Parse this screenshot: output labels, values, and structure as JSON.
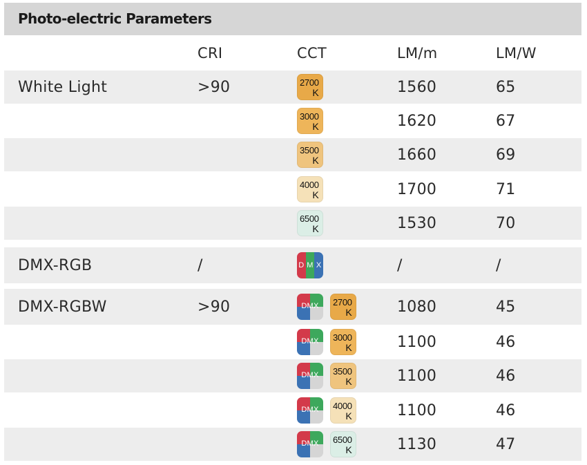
{
  "title": "Photo-electric Parameters",
  "headers": {
    "type": "",
    "cri": "CRI",
    "cct": "CCT",
    "lmm": "LM/m",
    "lmw": "LM/W"
  },
  "badge_colors": {
    "2700": "#e8a948",
    "3000": "#eeb55a",
    "3500": "#efc47e",
    "4000": "#f5e1b8",
    "6500": "#dbeee6"
  },
  "white_light": {
    "type": "White Light",
    "cri": ">90",
    "rows": [
      {
        "cct_value": "2700",
        "cct_unit": "K",
        "lmm": "1560",
        "lmw": "65"
      },
      {
        "cct_value": "3000",
        "cct_unit": "K",
        "lmm": "1620",
        "lmw": "67"
      },
      {
        "cct_value": "3500",
        "cct_unit": "K",
        "lmm": "1660",
        "lmw": "69"
      },
      {
        "cct_value": "4000",
        "cct_unit": "K",
        "lmm": "1700",
        "lmw": "71"
      },
      {
        "cct_value": "6500",
        "cct_unit": "K",
        "lmm": "1530",
        "lmw": "70"
      }
    ]
  },
  "dmx_rgb": {
    "type": "DMX-RGB",
    "cri": "/",
    "icon_letters": [
      "D",
      "M",
      "X"
    ],
    "lmm": "/",
    "lmw": "/"
  },
  "dmx_rgbw": {
    "type": "DMX-RGBW",
    "cri": ">90",
    "icon_label": "DMX",
    "rows": [
      {
        "cct_value": "2700",
        "cct_unit": "K",
        "lmm": "1080",
        "lmw": "45"
      },
      {
        "cct_value": "3000",
        "cct_unit": "K",
        "lmm": "1100",
        "lmw": "46"
      },
      {
        "cct_value": "3500",
        "cct_unit": "K",
        "lmm": "1100",
        "lmw": "46"
      },
      {
        "cct_value": "4000",
        "cct_unit": "K",
        "lmm": "1100",
        "lmw": "46"
      },
      {
        "cct_value": "6500",
        "cct_unit": "K",
        "lmm": "1130",
        "lmw": "47"
      }
    ]
  }
}
